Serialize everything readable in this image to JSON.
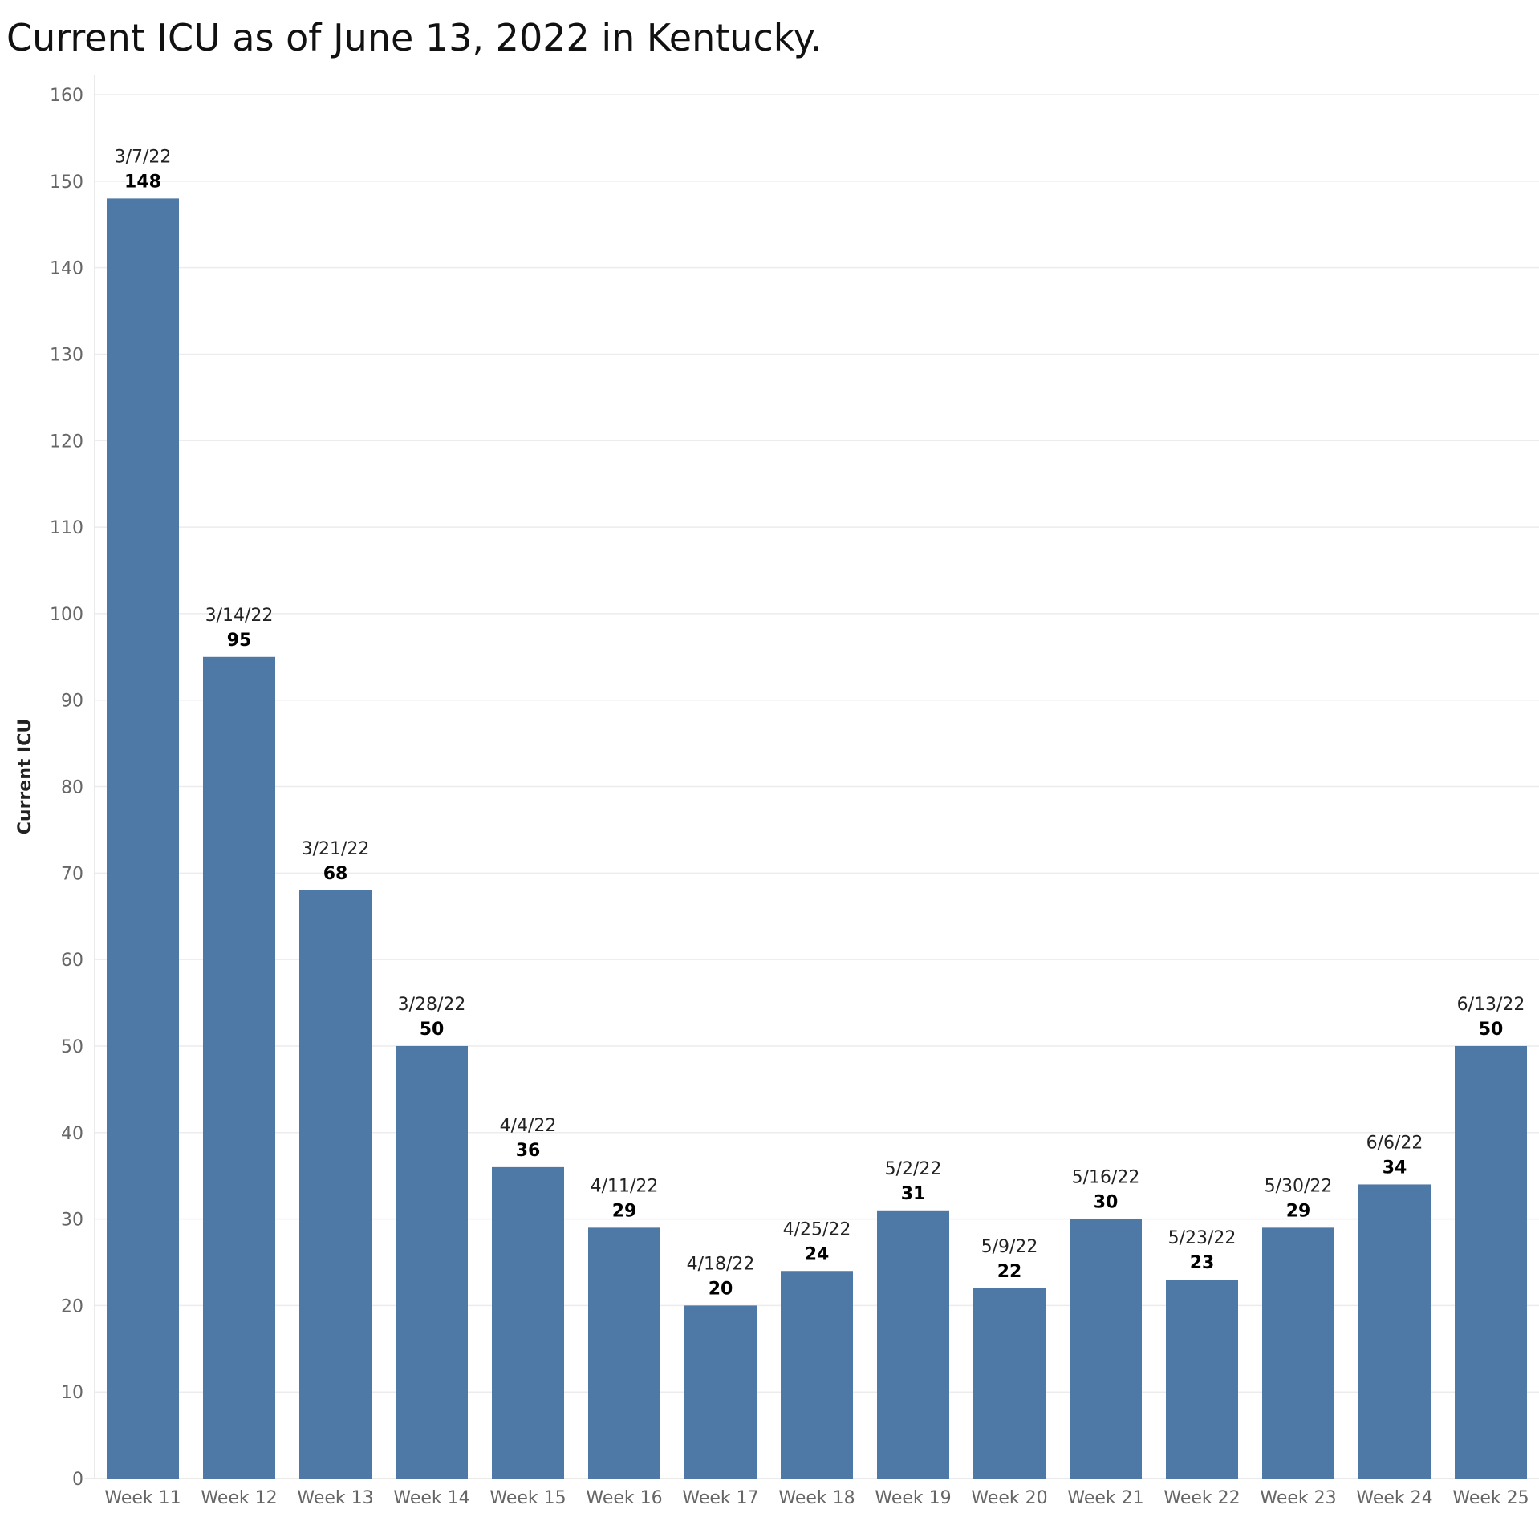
{
  "chart_data": {
    "type": "bar",
    "title": "Current ICU as of June 13, 2022 in Kentucky.",
    "xlabel": "",
    "ylabel": "Current ICU",
    "ylim": [
      0,
      160
    ],
    "yticks": [
      0,
      10,
      20,
      30,
      40,
      50,
      60,
      70,
      80,
      90,
      100,
      110,
      120,
      130,
      140,
      150,
      160
    ],
    "grid": true,
    "bar_color": "#4e79a7",
    "categories": [
      "Week 11",
      "Week 12",
      "Week 13",
      "Week 14",
      "Week 15",
      "Week 16",
      "Week 17",
      "Week 18",
      "Week 19",
      "Week 20",
      "Week 21",
      "Week 22",
      "Week 23",
      "Week 24",
      "Week 25"
    ],
    "dates": [
      "3/7/22",
      "3/14/22",
      "3/21/22",
      "3/28/22",
      "4/4/22",
      "4/11/22",
      "4/18/22",
      "4/25/22",
      "5/2/22",
      "5/9/22",
      "5/16/22",
      "5/23/22",
      "5/30/22",
      "6/6/22",
      "6/13/22"
    ],
    "values": [
      148,
      95,
      68,
      50,
      36,
      29,
      20,
      24,
      31,
      22,
      30,
      23,
      29,
      34,
      50
    ]
  }
}
